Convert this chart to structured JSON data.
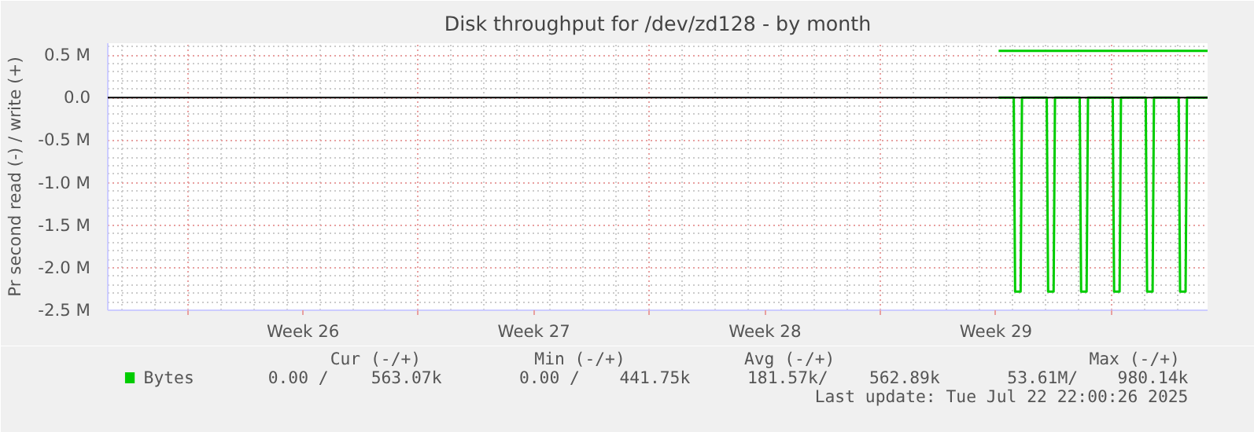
{
  "chart_data": {
    "type": "line",
    "title": "Disk throughput for /dev/zd128 - by month",
    "ylabel": "Pr second read (-) / write (+)",
    "series": [
      {
        "name": "Bytes",
        "color": "#00cc00",
        "x": [
          "2025-07-16T14:00",
          "2025-07-17T14:00",
          "2025-07-18T14:00",
          "2025-07-19T14:00",
          "2025-07-20T14:00",
          "2025-07-21T14:00",
          "2025-07-22T14:00",
          "2025-07-22T22:00"
        ],
        "values": [
          550000,
          550000,
          550000,
          550000,
          550000,
          550000,
          550000,
          550000
        ]
      },
      {
        "color": "#00cc00",
        "x": [
          "2025-07-16T14:00",
          "2025-07-17T01:00",
          "2025-07-17T02:00",
          "2025-07-17T06:00",
          "2025-07-17T07:00",
          "2025-07-18T01:00",
          "2025-07-18T02:00",
          "2025-07-18T06:00",
          "2025-07-18T07:00",
          "2025-07-19T01:00",
          "2025-07-19T02:00",
          "2025-07-19T06:00",
          "2025-07-19T07:00",
          "2025-07-20T01:00",
          "2025-07-20T02:00",
          "2025-07-20T06:00",
          "2025-07-20T07:00",
          "2025-07-21T01:00",
          "2025-07-21T02:00",
          "2025-07-21T06:00",
          "2025-07-21T07:00",
          "2025-07-22T01:00",
          "2025-07-22T02:00",
          "2025-07-22T06:00",
          "2025-07-22T07:00",
          "2025-07-22T22:00"
        ],
        "values": [
          0,
          0,
          -2280000,
          -2280000,
          0,
          0,
          -2280000,
          -2280000,
          0,
          0,
          -2280000,
          -2280000,
          0,
          0,
          -2280000,
          -2280000,
          0,
          0,
          -2280000,
          -2280000,
          0,
          0,
          -2280000,
          -2280000,
          0,
          0
        ]
      }
    ],
    "xlim": [
      "2025-06-19T14:00",
      "2025-07-22T22:00"
    ],
    "xticks": [
      {
        "value": "2025-06-22",
        "label": null
      },
      {
        "value": "2025-06-25T12:00",
        "label": "Week 26"
      },
      {
        "value": "2025-06-29",
        "label": null
      },
      {
        "value": "2025-07-02T12:00",
        "label": "Week 27"
      },
      {
        "value": "2025-07-06",
        "label": null
      },
      {
        "value": "2025-07-09T12:00",
        "label": "Week 28"
      },
      {
        "value": "2025-07-13",
        "label": null
      },
      {
        "value": "2025-07-16T12:00",
        "label": "Week 29"
      },
      {
        "value": "2025-07-20",
        "label": null
      }
    ],
    "ylim": [
      -2500000,
      640000
    ],
    "yticks": [
      {
        "value": 500000,
        "label": "0.5 M"
      },
      {
        "value": 0,
        "label": "0.0"
      },
      {
        "value": -500000,
        "label": "-0.5 M"
      },
      {
        "value": -1000000,
        "label": "-1.0 M"
      },
      {
        "value": -1500000,
        "label": "-1.5 M"
      },
      {
        "value": -2000000,
        "label": "-2.0 M"
      },
      {
        "value": -2500000,
        "label": "-2.5 M"
      }
    ],
    "ref_lines": [
      {
        "axis": "y",
        "value": 0,
        "color": "#000000"
      }
    ],
    "grid": true,
    "legend": "bottom left",
    "annotations": [
      "Cur (-/+)",
      "Min (-/+)",
      "Avg (-/+)",
      "Max (-/+)",
      "0.00 /",
      "563.07k",
      "0.00 /",
      "441.75k",
      "181.57k/",
      "562.89k",
      "53.61M/",
      "980.14k",
      "Last update: Tue Jul 22 22:00:26 2025"
    ]
  }
}
